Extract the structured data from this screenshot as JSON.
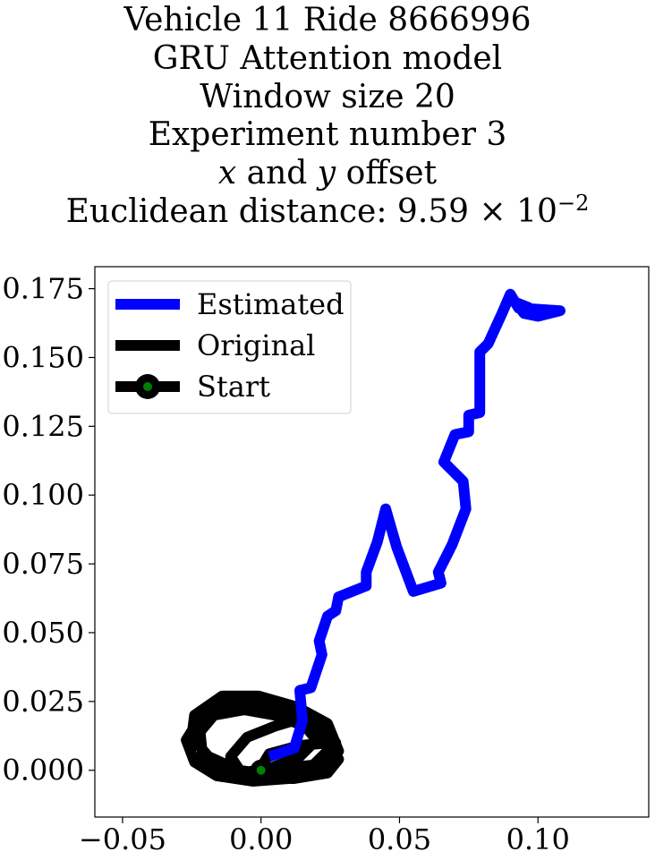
{
  "title": {
    "line1": "Vehicle 11 Ride 8666996",
    "line2": "GRU Attention model",
    "line3": "Window size 20",
    "line4": "Experiment number 3",
    "line5_var1": "x",
    "line5_and": " and ",
    "line5_var2": "y",
    "line5_rest": " offset",
    "line6_prefix": "Euclidean distance: 9.59 × 10",
    "line6_exponent": "−2"
  },
  "chart_data": {
    "type": "line",
    "xlim": [
      -0.06,
      0.14
    ],
    "ylim": [
      -0.017,
      0.183
    ],
    "xticks": [
      -0.05,
      0.0,
      0.05,
      0.1
    ],
    "xtick_labels": [
      "−0.05",
      "0.00",
      "0.05",
      "0.10"
    ],
    "yticks": [
      0.0,
      0.025,
      0.05,
      0.075,
      0.1,
      0.125,
      0.15,
      0.175
    ],
    "ytick_labels": [
      "0.000",
      "0.025",
      "0.050",
      "0.075",
      "0.100",
      "0.125",
      "0.150",
      "0.175"
    ],
    "grid": false,
    "legend_position": "top-left",
    "series": [
      {
        "name": "Estimated",
        "color": "#0000ff",
        "points": [
          [
            0.003,
            0.005
          ],
          [
            0.012,
            0.008
          ],
          [
            0.015,
            0.018
          ],
          [
            0.014,
            0.029
          ],
          [
            0.018,
            0.03
          ],
          [
            0.022,
            0.042
          ],
          [
            0.021,
            0.047
          ],
          [
            0.024,
            0.056
          ],
          [
            0.027,
            0.058
          ],
          [
            0.028,
            0.063
          ],
          [
            0.038,
            0.067
          ],
          [
            0.038,
            0.072
          ],
          [
            0.042,
            0.083
          ],
          [
            0.045,
            0.095
          ],
          [
            0.049,
            0.081
          ],
          [
            0.055,
            0.065
          ],
          [
            0.065,
            0.068
          ],
          [
            0.064,
            0.072
          ],
          [
            0.069,
            0.082
          ],
          [
            0.074,
            0.095
          ],
          [
            0.073,
            0.105
          ],
          [
            0.066,
            0.112
          ],
          [
            0.07,
            0.122
          ],
          [
            0.075,
            0.123
          ],
          [
            0.075,
            0.129
          ],
          [
            0.079,
            0.13
          ],
          [
            0.079,
            0.152
          ],
          [
            0.082,
            0.155
          ],
          [
            0.087,
            0.166
          ],
          [
            0.09,
            0.173
          ],
          [
            0.093,
            0.168
          ],
          [
            0.108,
            0.167
          ],
          [
            0.1,
            0.165
          ],
          [
            0.095,
            0.166
          ],
          [
            0.092,
            0.17
          ],
          [
            0.097,
            0.168
          ]
        ]
      },
      {
        "name": "Original",
        "color": "#000000",
        "points": [
          [
            0.0,
            0.0
          ],
          [
            0.01,
            0.001
          ],
          [
            0.02,
            0.002
          ],
          [
            0.027,
            0.005
          ],
          [
            0.027,
            0.01
          ],
          [
            0.022,
            0.016
          ],
          [
            0.012,
            0.021
          ],
          [
            0.0,
            0.024
          ],
          [
            -0.012,
            0.024
          ],
          [
            -0.022,
            0.019
          ],
          [
            -0.027,
            0.011
          ],
          [
            -0.024,
            0.003
          ],
          [
            -0.016,
            -0.002
          ],
          [
            -0.003,
            -0.004
          ],
          [
            0.01,
            -0.003
          ],
          [
            0.022,
            0.0
          ],
          [
            0.028,
            0.007
          ],
          [
            0.024,
            0.017
          ],
          [
            0.013,
            0.023
          ],
          [
            -0.001,
            0.027
          ],
          [
            -0.014,
            0.027
          ],
          [
            -0.024,
            0.02
          ],
          [
            -0.025,
            0.012
          ],
          [
            -0.019,
            0.005
          ],
          [
            -0.008,
            0.0
          ],
          [
            0.006,
            -0.002
          ],
          [
            0.018,
            0.001
          ],
          [
            0.025,
            0.008
          ],
          [
            0.022,
            0.015
          ],
          [
            0.015,
            0.019
          ],
          [
            0.005,
            0.016
          ],
          [
            -0.005,
            0.012
          ],
          [
            -0.011,
            0.005
          ],
          [
            -0.007,
            -0.001
          ],
          [
            0.004,
            0.001
          ],
          [
            0.014,
            0.005
          ],
          [
            0.02,
            0.011
          ],
          [
            0.016,
            0.016
          ],
          [
            0.005,
            0.02
          ],
          [
            -0.006,
            0.022
          ],
          [
            -0.017,
            0.02
          ],
          [
            -0.022,
            0.014
          ],
          [
            -0.021,
            0.004
          ],
          [
            -0.013,
            0.0
          ],
          [
            0.0,
            -0.003
          ],
          [
            0.012,
            -0.003
          ],
          [
            0.024,
            -0.001
          ],
          [
            0.028,
            0.004
          ],
          [
            0.025,
            0.01
          ],
          [
            0.014,
            0.009
          ],
          [
            0.003,
            0.006
          ],
          [
            0.0,
            0.001
          ]
        ]
      }
    ],
    "start": {
      "name": "Start",
      "point": [
        0.0,
        0.0
      ],
      "fill": "#008000",
      "edge": "#000000"
    }
  }
}
